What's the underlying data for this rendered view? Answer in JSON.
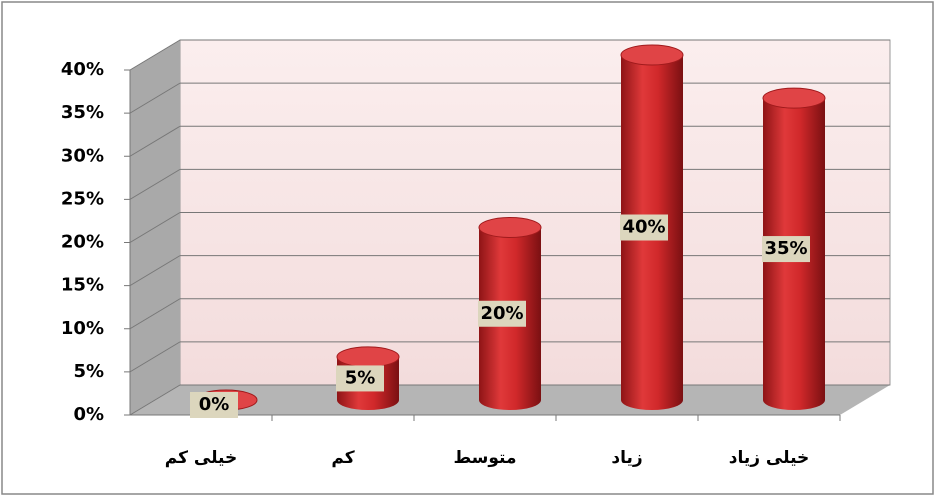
{
  "chart_data": {
    "type": "bar",
    "categories": [
      "خیلی کم",
      "کم",
      "متوسط",
      "زیاد",
      "خیلی زیاد"
    ],
    "values": [
      0,
      5,
      20,
      40,
      35
    ],
    "value_labels": [
      "0%",
      "5%",
      "20%",
      "40%",
      "35%"
    ],
    "color": "#d0282a",
    "ylim": [
      0,
      40
    ],
    "yticks": [
      {
        "value": 0,
        "label": "0%"
      },
      {
        "value": 5,
        "label": "5%"
      },
      {
        "value": 10,
        "label": "10%"
      },
      {
        "value": 15,
        "label": "15%"
      },
      {
        "value": 20,
        "label": "20%"
      },
      {
        "value": 25,
        "label": "25%"
      },
      {
        "value": 30,
        "label": "30%"
      },
      {
        "value": 35,
        "label": "35%"
      },
      {
        "value": 40,
        "label": "40%"
      }
    ],
    "grid": true
  }
}
